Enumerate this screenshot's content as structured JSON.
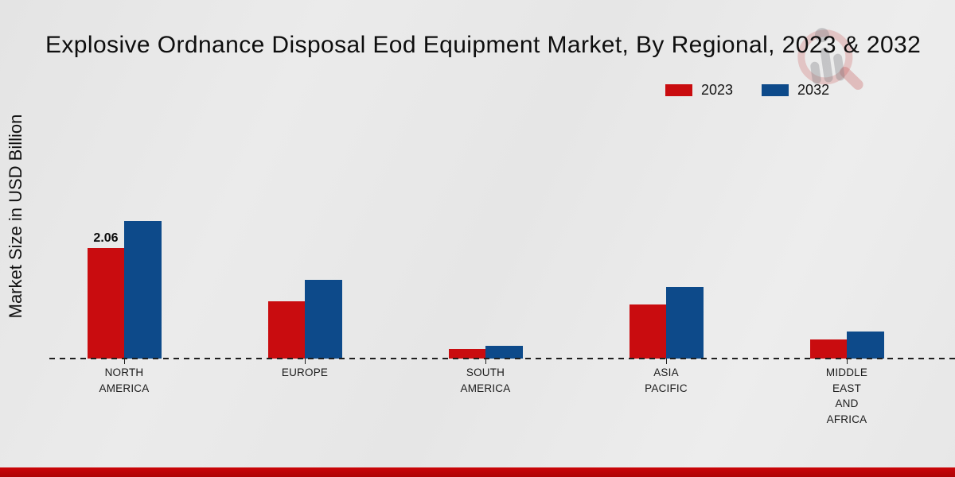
{
  "chart_data": {
    "type": "bar",
    "title": "Explosive Ordnance Disposal Eod Equipment Market, By Regional, 2023 & 2032",
    "ylabel": "Market Size in USD Billion",
    "xlabel": "",
    "categories": [
      "North America",
      "Europe",
      "South America",
      "Asia Pacific",
      "Middle East and Africa"
    ],
    "category_display_lines": [
      [
        "NORTH",
        "AMERICA"
      ],
      [
        "EUROPE"
      ],
      [
        "SOUTH",
        "AMERICA"
      ],
      [
        "ASIA",
        "PACIFIC"
      ],
      [
        "MIDDLE",
        "EAST",
        "AND",
        "AFRICA"
      ]
    ],
    "series": [
      {
        "name": "2023",
        "color": "#c90c0f",
        "values": [
          2.06,
          1.07,
          0.18,
          1.01,
          0.36
        ]
      },
      {
        "name": "2032",
        "color": "#0d4a8a",
        "values": [
          2.56,
          1.47,
          0.24,
          1.33,
          0.5
        ]
      }
    ],
    "shown_value_labels": [
      {
        "category_index": 0,
        "series_index": 0,
        "text": "2.06"
      }
    ],
    "ylim": [
      0,
      3
    ],
    "grid": false,
    "legend_position": "top-right",
    "x_axis_style": "dashed"
  },
  "footer": {
    "accent_color": "#c20508"
  },
  "watermark": {
    "name": "market-research-future-logo"
  }
}
